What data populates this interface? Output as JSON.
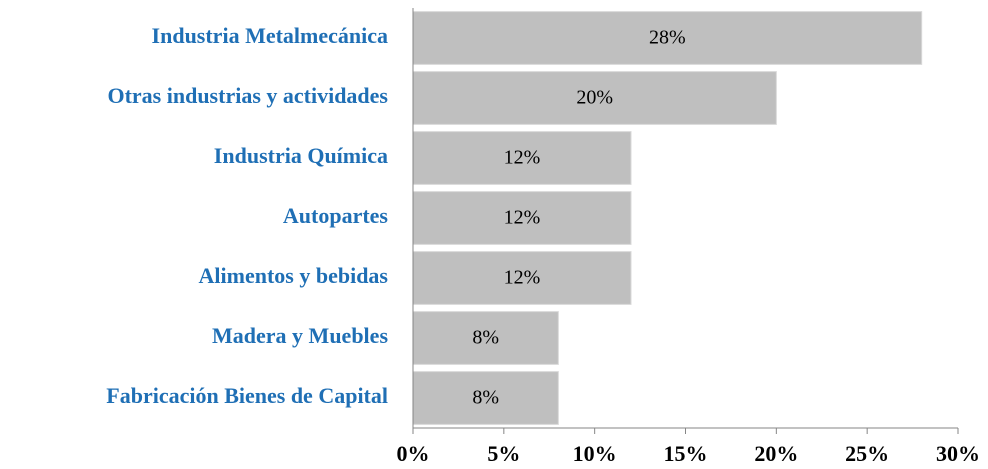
{
  "chart_data": {
    "type": "bar",
    "orientation": "horizontal",
    "categories": [
      "Industria Metalmecánica",
      "Otras industrias y actividades",
      "Industria Química",
      "Autopartes",
      "Alimentos y bebidas",
      "Madera y Muebles",
      "Fabricación Bienes de Capital"
    ],
    "values": [
      28,
      20,
      12,
      12,
      12,
      8,
      8
    ],
    "value_labels": [
      "28%",
      "20%",
      "12%",
      "12%",
      "12%",
      "8%",
      "8%"
    ],
    "color": "#bfbfbf",
    "xlim": [
      0,
      30
    ],
    "xticks": [
      {
        "value": 0,
        "label": "0%"
      },
      {
        "value": 5,
        "label": "5%"
      },
      {
        "value": 10,
        "label": "10%"
      },
      {
        "value": 15,
        "label": "15%"
      },
      {
        "value": 20,
        "label": "20%"
      },
      {
        "value": 25,
        "label": "25%"
      },
      {
        "value": 30,
        "label": "30%"
      }
    ]
  }
}
